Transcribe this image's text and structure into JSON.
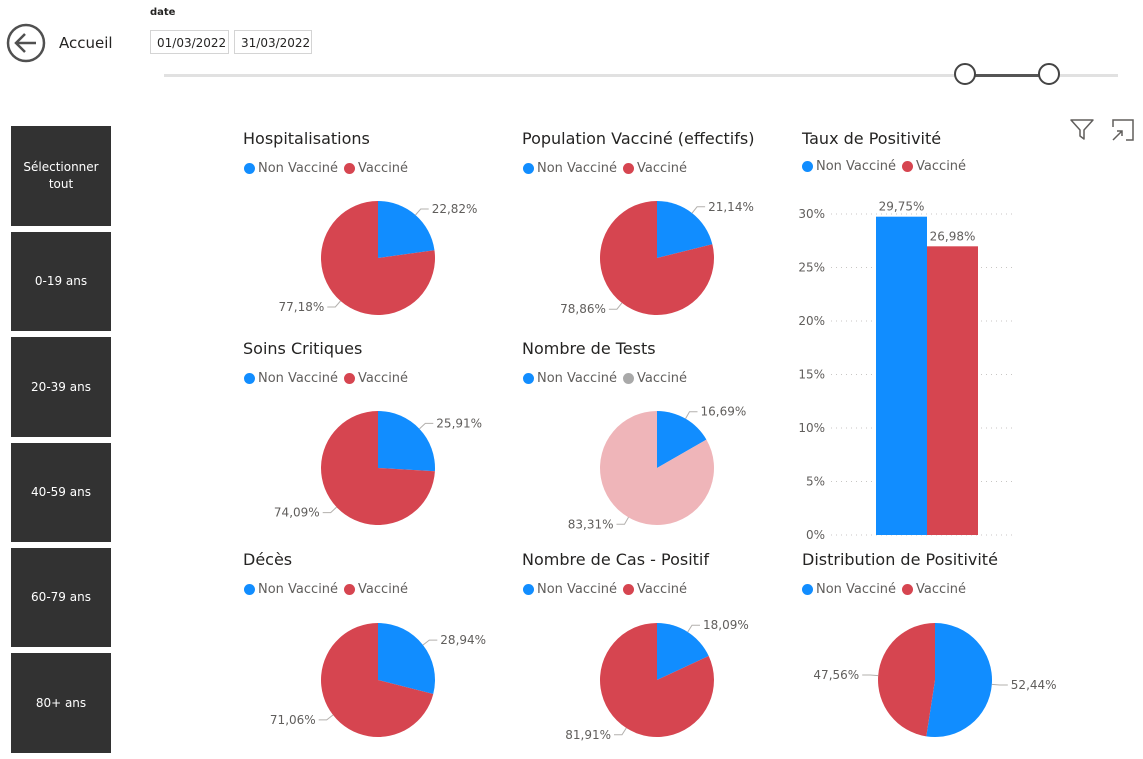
{
  "nav": {
    "back_label": "Accueil"
  },
  "filter": {
    "label": "date",
    "start": "01/03/2022",
    "end": "31/03/2022"
  },
  "age_buttons": [
    "Sélectionner tout",
    "0-19 ans",
    "20-39 ans",
    "40-59 ans",
    "60-79 ans",
    "80+ ans"
  ],
  "colors": {
    "non_vaccine": "#118DFF",
    "vaccine": "#D64550",
    "vaccine_faded": "#EFB5B9",
    "legend_grey": "#A9A9A9",
    "button_bg": "#323232"
  },
  "icons": [
    "back-arrow-icon",
    "filter-icon",
    "focus-mode-icon"
  ],
  "chart_data": [
    {
      "type": "pie",
      "title": "Hospitalisations",
      "legend": [
        "Non Vacciné",
        "Vacciné"
      ],
      "values": [
        22.82,
        77.18
      ],
      "labels": [
        "22,82%",
        "77,18%"
      ]
    },
    {
      "type": "pie",
      "title": "Population Vacciné (effectifs)",
      "legend": [
        "Non Vacciné",
        "Vacciné"
      ],
      "values": [
        21.14,
        78.86
      ],
      "labels": [
        "21,14%",
        "78,86%"
      ]
    },
    {
      "type": "bar",
      "title": "Taux de Positivité",
      "legend": [
        "Non Vacciné",
        "Vacciné"
      ],
      "values": [
        29.75,
        26.98
      ],
      "labels": [
        "29,75%",
        "26,98%"
      ],
      "ylim": [
        0,
        30
      ],
      "yticks": [
        "0%",
        "5%",
        "10%",
        "15%",
        "20%",
        "25%",
        "30%"
      ],
      "grid": true
    },
    {
      "type": "pie",
      "title": "Soins Critiques",
      "legend": [
        "Non Vacciné",
        "Vacciné"
      ],
      "values": [
        25.91,
        74.09
      ],
      "labels": [
        "25,91%",
        "74,09%"
      ]
    },
    {
      "type": "pie",
      "title": "Nombre de Tests",
      "legend": [
        "Non Vacciné",
        "Vacciné"
      ],
      "values": [
        16.69,
        83.31
      ],
      "labels": [
        "16,69%",
        "83,31%"
      ]
    },
    {
      "type": "pie",
      "title": "Décès",
      "legend": [
        "Non Vacciné",
        "Vacciné"
      ],
      "values": [
        28.94,
        71.06
      ],
      "labels": [
        "28,94%",
        "71,06%"
      ]
    },
    {
      "type": "pie",
      "title": "Nombre de Cas - Positif",
      "legend": [
        "Non Vacciné",
        "Vacciné"
      ],
      "values": [
        18.09,
        81.91
      ],
      "labels": [
        "18,09%",
        "81,91%"
      ]
    },
    {
      "type": "pie",
      "title": "Distribution de Positivité",
      "legend": [
        "Non Vacciné",
        "Vacciné"
      ],
      "values": [
        52.44,
        47.56
      ],
      "labels": [
        "52,44%",
        "47,56%"
      ]
    }
  ]
}
